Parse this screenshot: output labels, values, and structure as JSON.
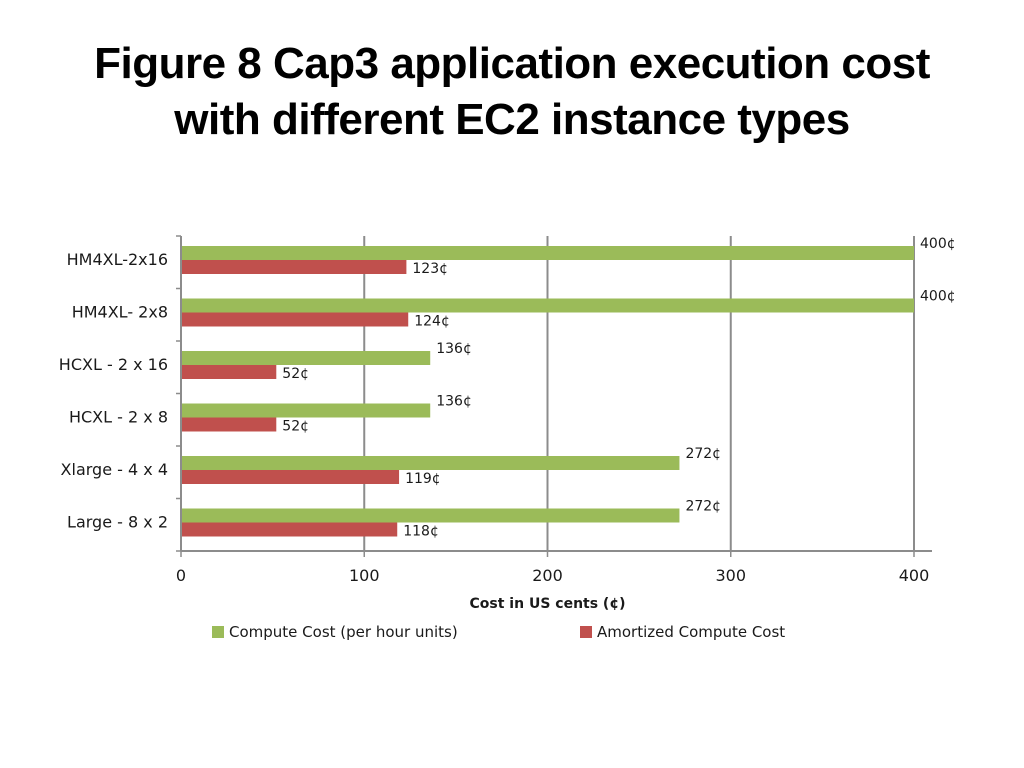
{
  "slide": {
    "title_line1": "Figure 8 Cap3 application execution cost",
    "title_line2": "with different EC2 instance types"
  },
  "chart_data": {
    "type": "bar",
    "orientation": "horizontal",
    "categories": [
      "HM4XL-2x16",
      "HM4XL- 2x8",
      "HCXL - 2 x 16",
      "HCXL - 2 x 8",
      "Xlarge - 4 x 4",
      "Large - 8 x 2"
    ],
    "series": [
      {
        "name": "Compute Cost (per hour units)",
        "color": "#9bbb59",
        "values": [
          400,
          400,
          136,
          136,
          272,
          272
        ],
        "labels": [
          "400¢",
          "400¢",
          "136¢",
          "136¢",
          "272¢",
          "272¢"
        ]
      },
      {
        "name": "Amortized Compute Cost",
        "color": "#c0504d",
        "values": [
          123,
          124,
          52,
          52,
          119,
          118
        ],
        "labels": [
          "123¢",
          "124¢",
          "52¢",
          "52¢",
          "119¢",
          "118¢"
        ]
      }
    ],
    "xlabel": "Cost in US cents (¢)",
    "ylabel": "",
    "xlim": [
      0,
      400
    ],
    "xticks": [
      0,
      100,
      200,
      300,
      400
    ],
    "grid": true,
    "legend_position": "bottom"
  }
}
